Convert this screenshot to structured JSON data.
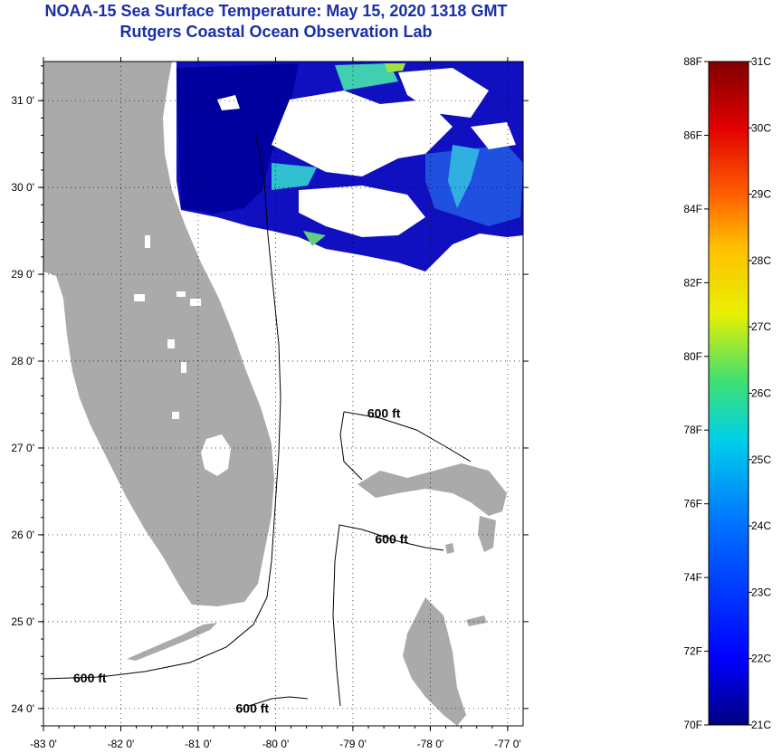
{
  "title": "NOAA-15 Sea Surface Temperature:  May 15, 2020 1318 GMT",
  "subtitle": "Rutgers Coastal Ocean Observation Lab",
  "map": {
    "lon_range": [
      -83,
      -76.8
    ],
    "lat_range": [
      23.8,
      31.45
    ],
    "lon_ticks": [
      {
        "value": -83,
        "label": "-83 0'"
      },
      {
        "value": -82,
        "label": "-82 0'"
      },
      {
        "value": -81,
        "label": "-81 0'"
      },
      {
        "value": -80,
        "label": "-80 0'"
      },
      {
        "value": -79,
        "label": "-79 0'"
      },
      {
        "value": -78,
        "label": "-78 0'"
      },
      {
        "value": -77,
        "label": "-77 0'"
      }
    ],
    "lat_ticks": [
      {
        "value": 31,
        "label": "31 0'"
      },
      {
        "value": 30,
        "label": "30 0'"
      },
      {
        "value": 29,
        "label": "29 0'"
      },
      {
        "value": 28,
        "label": "28 0'"
      },
      {
        "value": 27,
        "label": "27 0'"
      },
      {
        "value": 26,
        "label": "26 0'"
      },
      {
        "value": 25,
        "label": "25 0'"
      },
      {
        "value": 24,
        "label": "24 0'"
      }
    ],
    "contour_labels": [
      {
        "text": "600 ft",
        "lon": -78.6,
        "lat": 27.35
      },
      {
        "text": "600 ft",
        "lon": -78.5,
        "lat": 25.9
      },
      {
        "text": "600 ft",
        "lon": -82.4,
        "lat": 24.3
      },
      {
        "text": "600 ft",
        "lon": -80.3,
        "lat": 23.95
      }
    ],
    "land_color": "#aaaaaa",
    "grid": true
  },
  "colorbar": {
    "fahrenheit_labels": [
      "88F",
      "86F",
      "84F",
      "82F",
      "80F",
      "78F",
      "76F",
      "74F",
      "72F",
      "70F"
    ],
    "celsius_labels": [
      "31C",
      "30C",
      "29C",
      "28C",
      "27C",
      "26C",
      "25C",
      "24C",
      "23C",
      "22C",
      "21C"
    ],
    "range_f": [
      70,
      88
    ],
    "range_c": [
      21,
      31
    ],
    "colors": [
      "#000080",
      "#0000ff",
      "#0080ff",
      "#00e0e0",
      "#40e060",
      "#ffff00",
      "#ff8000",
      "#ff0000",
      "#800000"
    ]
  }
}
